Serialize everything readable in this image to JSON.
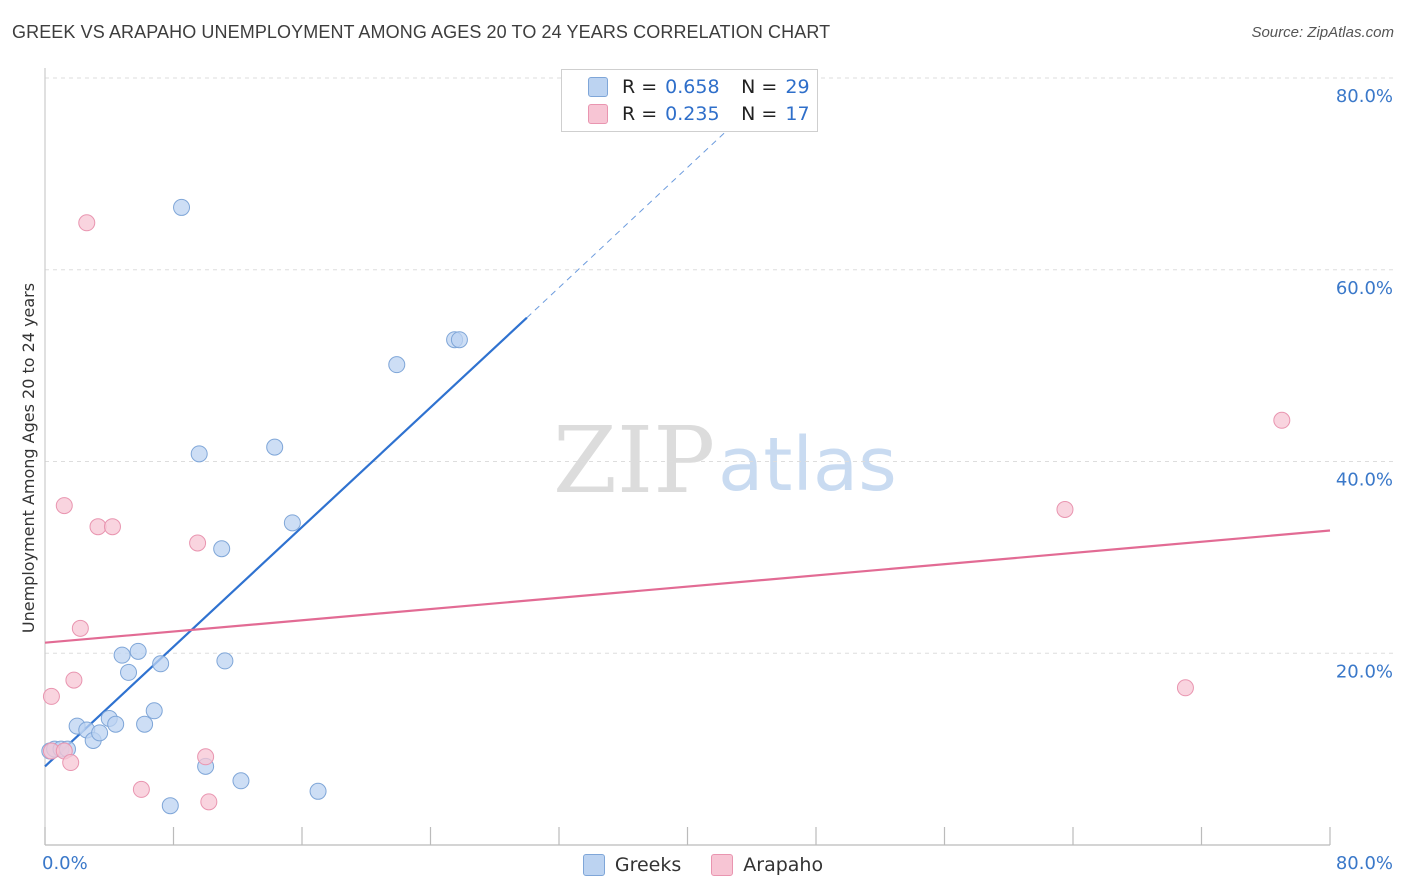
{
  "header": {
    "title": "GREEK VS ARAPAHO UNEMPLOYMENT AMONG AGES 20 TO 24 YEARS CORRELATION CHART",
    "source": "Source: ZipAtlas.com"
  },
  "watermark": {
    "zip": "ZIP",
    "atlas": "atlas"
  },
  "legend": {
    "r_label": "R =",
    "n_label": "N =",
    "rows": [
      {
        "name": "Greeks",
        "r": "0.658",
        "n": "29"
      },
      {
        "name": "Arapaho",
        "r": "0.235",
        "n": "17"
      }
    ]
  },
  "colors": {
    "greeks_fill": "#bcd3f1",
    "greeks_stroke": "#7fa6d8",
    "greeks_line": "#2f72d0",
    "arapaho_fill": "#f7c5d4",
    "arapaho_stroke": "#e995b0",
    "arapaho_line": "#e26b94",
    "grid": "#dddddd",
    "axis_text": "#3a78c9"
  },
  "chart_data": {
    "type": "scatter",
    "title": "GREEK VS ARAPAHO UNEMPLOYMENT AMONG AGES 20 TO 24 YEARS CORRELATION CHART",
    "xlabel": "",
    "ylabel": "Unemployment Among Ages 20 to 24 years",
    "xlim": [
      0,
      80
    ],
    "ylim": [
      0,
      80
    ],
    "x_tick_labels": [
      "0.0%",
      "80.0%"
    ],
    "y_ticks": [
      20,
      40,
      60,
      80
    ],
    "y_tick_labels": [
      "20.0%",
      "40.0%",
      "60.0%",
      "80.0%"
    ],
    "grid": true,
    "series": [
      {
        "name": "Greeks",
        "points": [
          [
            0.3,
            9.8
          ],
          [
            0.6,
            10.0
          ],
          [
            1.0,
            10.0
          ],
          [
            1.4,
            10.0
          ],
          [
            2.0,
            12.4
          ],
          [
            2.6,
            12.0
          ],
          [
            3.0,
            10.9
          ],
          [
            3.4,
            11.7
          ],
          [
            4.0,
            13.2
          ],
          [
            4.4,
            12.6
          ],
          [
            4.8,
            19.8
          ],
          [
            5.2,
            18.0
          ],
          [
            5.8,
            20.2
          ],
          [
            6.2,
            12.6
          ],
          [
            6.8,
            14.0
          ],
          [
            7.2,
            18.9
          ],
          [
            7.8,
            4.1
          ],
          [
            8.5,
            66.5
          ],
          [
            9.6,
            40.8
          ],
          [
            10.0,
            8.2
          ],
          [
            11.0,
            30.9
          ],
          [
            11.2,
            19.2
          ],
          [
            12.2,
            6.7
          ],
          [
            14.3,
            41.5
          ],
          [
            15.4,
            33.6
          ],
          [
            17.0,
            5.6
          ],
          [
            21.9,
            50.1
          ],
          [
            25.5,
            52.7
          ],
          [
            25.8,
            52.7
          ]
        ],
        "trend": {
          "x": [
            0.0,
            30.0
          ],
          "y": [
            8.2,
            55.0
          ],
          "dashed_to": {
            "x": 43.4,
            "y": 76.0
          }
        }
      },
      {
        "name": "Arapaho",
        "points": [
          [
            0.4,
            15.5
          ],
          [
            0.4,
            9.8
          ],
          [
            1.2,
            9.8
          ],
          [
            1.2,
            35.4
          ],
          [
            1.6,
            8.6
          ],
          [
            1.8,
            17.2
          ],
          [
            2.2,
            22.6
          ],
          [
            2.6,
            64.9
          ],
          [
            3.3,
            33.2
          ],
          [
            4.2,
            33.2
          ],
          [
            6.0,
            5.8
          ],
          [
            9.5,
            31.5
          ],
          [
            10.0,
            9.2
          ],
          [
            10.2,
            4.5
          ],
          [
            63.5,
            35.0
          ],
          [
            71.0,
            16.4
          ],
          [
            77.0,
            44.3
          ]
        ],
        "trend": {
          "x": [
            0.0,
            80.0
          ],
          "y": [
            21.1,
            32.8
          ]
        }
      }
    ]
  }
}
